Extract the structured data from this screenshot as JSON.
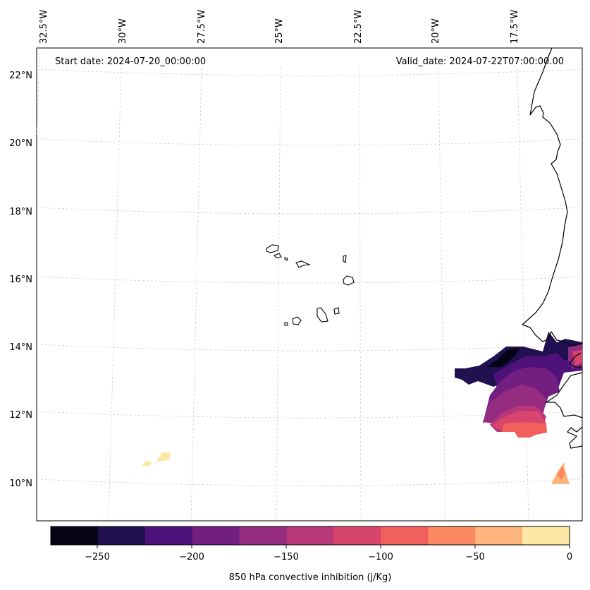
{
  "map": {
    "start_date": "Start date: 2024-07-20_00:00:00",
    "valid_date": "Valid_date: 2024-07-22T07:00:00.00",
    "lon_labels": [
      "32.5°W",
      "30°W",
      "27.5°W",
      "25°W",
      "22.5°W",
      "20°W",
      "17.5°W"
    ],
    "lat_labels": [
      "22°N",
      "20°N",
      "18°N",
      "16°N",
      "14°N",
      "12°N",
      "10°N"
    ],
    "gridlines": true,
    "variable": "850 hPa convective inhibition (j/Kg)",
    "units": "j/Kg"
  },
  "colorbar": {
    "label": "850 hPa convective inhibition (j/Kg)",
    "tick_labels": [
      "−250",
      "−200",
      "−150",
      "−100",
      "−50",
      "0"
    ],
    "levels": [
      -275,
      -250,
      -225,
      -200,
      -175,
      -150,
      -125,
      -100,
      -75,
      -50,
      -25,
      0
    ],
    "colors": [
      "#050417",
      "#221150",
      "#4f127b",
      "#721f81",
      "#952c80",
      "#b73779",
      "#d8456c",
      "#f1605d",
      "#fc8961",
      "#feb47b",
      "#fee8a5"
    ]
  }
}
